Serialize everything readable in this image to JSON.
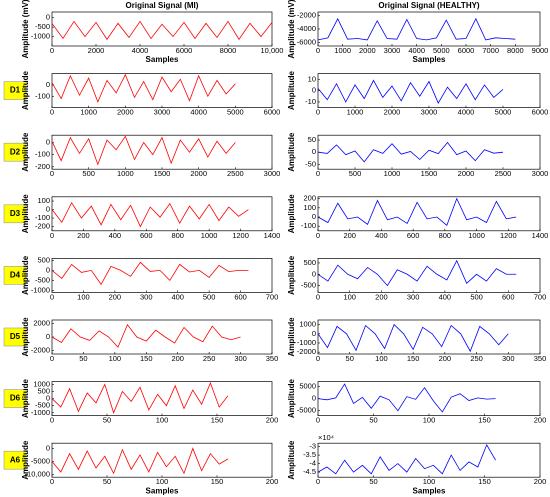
{
  "row_labels": [
    "D1",
    "D2",
    "D3",
    "D4",
    "D5",
    "D6",
    "A6"
  ],
  "chart_data": [
    {
      "type": "line",
      "title": "Original Signal (MI)",
      "ylabel": "Amplitude (mV)",
      "xlabel": "Samples",
      "color": "#ff0000",
      "x": [
        0,
        500,
        1000,
        1500,
        2000,
        2500,
        3000,
        3500,
        4000,
        4500,
        5000,
        5500,
        6000,
        6500,
        7000,
        7500,
        8000,
        8500,
        9000,
        9500,
        10000
      ],
      "values": [
        -300,
        -1100,
        -200,
        -1000,
        -250,
        -1150,
        -300,
        -1050,
        -200,
        -1100,
        -350,
        -1000,
        -250,
        -1100,
        -300,
        -1050,
        -200,
        -1150,
        -300,
        -1000,
        -250
      ],
      "xlim": [
        0,
        10000
      ],
      "xticks": [
        0,
        2000,
        4000,
        6000,
        8000,
        {
          "value": 10000,
          "label": "10,000"
        }
      ],
      "ylim": [
        -1500,
        300
      ],
      "yticks": [
        -1000,
        -500,
        0
      ]
    },
    {
      "type": "line",
      "title": "Original Signal (HEALTHY)",
      "ylabel": "Amplitude (mV)",
      "xlabel": "Samples",
      "color": "#0000ff",
      "x": [
        0,
        400,
        800,
        1200,
        1600,
        2000,
        2400,
        2800,
        3200,
        3600,
        4000,
        4400,
        4800,
        5200,
        5600,
        6000,
        6400,
        6800,
        7200,
        7600,
        8000
      ],
      "values": [
        -5600,
        -5300,
        -2500,
        -5500,
        -5400,
        -5600,
        -2800,
        -5400,
        -5500,
        -2600,
        -5400,
        -5600,
        -5300,
        -2700,
        -5500,
        -5400,
        -2500,
        -5600,
        -5300,
        -5400,
        -5500
      ],
      "xlim": [
        0,
        9000
      ],
      "xticks": [
        0,
        1000,
        2000,
        3000,
        4000,
        5000,
        6000,
        7000,
        8000,
        9000
      ],
      "ylim": [
        -6500,
        -1500
      ],
      "yticks": [
        -6000,
        -4000,
        -2000
      ]
    },
    {
      "type": "line",
      "ylabel": "Amplitude",
      "color": "#ff0000",
      "x": [
        0,
        250,
        500,
        750,
        1000,
        1250,
        1500,
        1750,
        2000,
        2250,
        2500,
        2750,
        3000,
        3250,
        3500,
        3750,
        4000,
        4250,
        4500,
        4750,
        5000
      ],
      "values": [
        20,
        -120,
        80,
        -90,
        60,
        -150,
        40,
        -70,
        90,
        -110,
        30,
        -130,
        70,
        -60,
        50,
        -140,
        80,
        -100,
        40,
        -80,
        10
      ],
      "xlim": [
        0,
        6000
      ],
      "xticks": [
        0,
        1000,
        2000,
        3000,
        4000,
        5000,
        6000
      ],
      "ylim": [
        -200,
        100
      ],
      "yticks": [
        -100,
        0
      ]
    },
    {
      "type": "line",
      "ylabel": "Amplitude",
      "color": "#0000ff",
      "x": [
        0,
        250,
        500,
        750,
        1000,
        1250,
        1500,
        1750,
        2000,
        2250,
        2500,
        2750,
        3000,
        3250,
        3500,
        3750,
        4000,
        4250,
        4500,
        4750,
        5000
      ],
      "values": [
        2,
        -8,
        6,
        -10,
        5,
        -7,
        9,
        -6,
        4,
        -9,
        7,
        -5,
        8,
        -11,
        3,
        -7,
        6,
        -8,
        5,
        -6,
        1
      ],
      "xlim": [
        0,
        6000
      ],
      "xticks": [
        0,
        1000,
        2000,
        3000,
        4000,
        5000,
        6000
      ],
      "ylim": [
        -15,
        15
      ],
      "yticks": [
        -10,
        0,
        10
      ]
    },
    {
      "type": "line",
      "ylabel": "Amplitude",
      "color": "#ff0000",
      "x": [
        0,
        125,
        250,
        375,
        500,
        625,
        750,
        875,
        1000,
        1125,
        1250,
        1375,
        1500,
        1625,
        1750,
        1875,
        2000,
        2125,
        2250,
        2375,
        2500
      ],
      "values": [
        10,
        -150,
        40,
        -90,
        30,
        -180,
        20,
        -60,
        50,
        -140,
        0,
        -100,
        40,
        -170,
        20,
        -80,
        30,
        -120,
        10,
        -90,
        0
      ],
      "xlim": [
        0,
        3000
      ],
      "xticks": [
        0,
        500,
        1000,
        1500,
        2000,
        2500,
        3000
      ],
      "ylim": [
        -220,
        60
      ],
      "yticks": [
        -200,
        -100,
        0
      ]
    },
    {
      "type": "line",
      "ylabel": "Amplitude",
      "color": "#0000ff",
      "x": [
        0,
        125,
        250,
        375,
        500,
        625,
        750,
        875,
        1000,
        1125,
        1250,
        1375,
        1500,
        1625,
        1750,
        1875,
        2000,
        2125,
        2250,
        2375,
        2500
      ],
      "values": [
        0,
        -5,
        30,
        -10,
        5,
        -40,
        10,
        -5,
        35,
        -8,
        3,
        -30,
        8,
        -6,
        40,
        -10,
        5,
        -35,
        10,
        -4,
        0
      ],
      "xlim": [
        0,
        3000
      ],
      "xticks": [
        0,
        500,
        1000,
        1500,
        2000,
        2500,
        3000
      ],
      "ylim": [
        -70,
        70
      ],
      "yticks": [
        -50,
        0,
        50
      ]
    },
    {
      "type": "line",
      "ylabel": "Amplitude",
      "color": "#ff0000",
      "x": [
        0,
        62.5,
        125,
        187.5,
        250,
        312.5,
        375,
        437.5,
        500,
        562.5,
        625,
        687.5,
        750,
        812.5,
        875,
        937.5,
        1000,
        1062.5,
        1125,
        1187.5,
        1250
      ],
      "values": [
        0,
        -150,
        80,
        -100,
        40,
        -180,
        60,
        -120,
        50,
        -200,
        30,
        -90,
        70,
        -160,
        40,
        -110,
        60,
        -130,
        30,
        -80,
        0
      ],
      "xlim": [
        0,
        1400
      ],
      "xticks": [
        0,
        200,
        400,
        600,
        800,
        1000,
        1200,
        1400
      ],
      "ylim": [
        -250,
        150
      ],
      "yticks": [
        -200,
        -100,
        0,
        100
      ]
    },
    {
      "type": "line",
      "ylabel": "Amplitude",
      "color": "#0000ff",
      "x": [
        0,
        62.5,
        125,
        187.5,
        250,
        312.5,
        375,
        437.5,
        500,
        562.5,
        625,
        687.5,
        750,
        812.5,
        875,
        937.5,
        1000,
        1062.5,
        1125,
        1187.5,
        1250
      ],
      "values": [
        0,
        -60,
        150,
        -20,
        0,
        -80,
        180,
        -30,
        0,
        -70,
        160,
        -20,
        0,
        -90,
        200,
        -30,
        0,
        -60,
        170,
        -20,
        0
      ],
      "xlim": [
        0,
        1400
      ],
      "xticks": [
        0,
        200,
        400,
        600,
        800,
        1000,
        1200,
        1400
      ],
      "ylim": [
        -150,
        220
      ],
      "yticks": [
        -100,
        0,
        100,
        200
      ]
    },
    {
      "type": "line",
      "ylabel": "Amplitude",
      "color": "#ff0000",
      "x": [
        0,
        31.25,
        62.5,
        93.75,
        125,
        156.25,
        187.5,
        218.75,
        250,
        281.25,
        312.5,
        343.75,
        375,
        406.25,
        437.5,
        468.75,
        500,
        531.25,
        562.5,
        593.75,
        625
      ],
      "values": [
        0,
        -400,
        300,
        -100,
        0,
        -700,
        200,
        0,
        -300,
        400,
        -50,
        0,
        -500,
        300,
        -80,
        0,
        -350,
        250,
        -60,
        0,
        0
      ],
      "xlim": [
        0,
        700
      ],
      "xticks": [
        0,
        100,
        200,
        300,
        400,
        500,
        600,
        700
      ],
      "ylim": [
        -1100,
        600
      ],
      "yticks": [
        -1000,
        -500,
        0,
        500
      ]
    },
    {
      "type": "line",
      "ylabel": "Amplitude",
      "color": "#0000ff",
      "x": [
        0,
        31.25,
        62.5,
        93.75,
        125,
        156.25,
        187.5,
        218.75,
        250,
        281.25,
        312.5,
        343.75,
        375,
        406.25,
        437.5,
        468.75,
        500,
        531.25,
        562.5,
        593.75,
        625
      ],
      "values": [
        0,
        -300,
        400,
        0,
        -200,
        300,
        0,
        -500,
        200,
        0,
        -300,
        350,
        0,
        -250,
        600,
        -400,
        0,
        -300,
        250,
        0,
        0
      ],
      "xlim": [
        0,
        700
      ],
      "xticks": [
        0,
        100,
        200,
        300,
        400,
        500,
        600,
        700
      ],
      "ylim": [
        -800,
        700
      ],
      "yticks": [
        -500,
        0,
        500
      ]
    },
    {
      "type": "line",
      "ylabel": "Amplitude",
      "color": "#ff0000",
      "x": [
        0,
        15,
        30,
        45,
        60,
        75,
        90,
        105,
        120,
        135,
        150,
        165,
        180,
        195,
        210,
        225,
        240,
        255,
        270,
        285,
        300
      ],
      "values": [
        0,
        -800,
        1200,
        0,
        -500,
        900,
        0,
        -1500,
        1800,
        0,
        -600,
        1000,
        0,
        -900,
        1400,
        0,
        -700,
        1600,
        0,
        -400,
        0
      ],
      "xlim": [
        0,
        350
      ],
      "xticks": [
        0,
        50,
        100,
        150,
        200,
        250,
        300,
        350
      ],
      "ylim": [
        -2500,
        2500
      ],
      "yticks": [
        -2000,
        0,
        2000
      ]
    },
    {
      "type": "line",
      "ylabel": "Amplitude",
      "color": "#0000ff",
      "x": [
        0,
        15,
        30,
        45,
        60,
        75,
        90,
        105,
        120,
        135,
        150,
        165,
        180,
        195,
        210,
        225,
        240,
        255,
        270,
        285,
        300
      ],
      "values": [
        0,
        -1500,
        800,
        0,
        -1800,
        900,
        0,
        -1600,
        1000,
        0,
        -1700,
        700,
        0,
        -1400,
        900,
        0,
        -1900,
        800,
        0,
        -1200,
        0
      ],
      "xlim": [
        0,
        350
      ],
      "xticks": [
        0,
        50,
        100,
        150,
        200,
        250,
        300,
        350
      ],
      "ylim": [
        -2200,
        1500
      ],
      "yticks": [
        -2000,
        -1000,
        0,
        1000
      ]
    },
    {
      "type": "line",
      "ylabel": "Amplitude",
      "color": "#ff0000",
      "x": [
        0,
        8,
        16,
        24,
        32,
        40,
        48,
        56,
        64,
        72,
        80,
        88,
        96,
        104,
        112,
        120,
        128,
        136,
        144,
        152,
        160
      ],
      "values": [
        0,
        -600,
        700,
        -900,
        400,
        -300,
        1000,
        -1000,
        500,
        -200,
        800,
        -800,
        300,
        -500,
        900,
        -700,
        600,
        -400,
        1100,
        -600,
        200
      ],
      "xlim": [
        0,
        200
      ],
      "xticks": [
        0,
        50,
        100,
        150,
        200
      ],
      "ylim": [
        -1200,
        1200
      ],
      "yticks": [
        -1000,
        -500,
        0,
        500,
        1000
      ]
    },
    {
      "type": "line",
      "ylabel": "Amplitude",
      "color": "#0000ff",
      "x": [
        0,
        8,
        16,
        24,
        32,
        40,
        48,
        56,
        64,
        72,
        80,
        88,
        96,
        104,
        112,
        120,
        128,
        136,
        144,
        152,
        160
      ],
      "values": [
        0,
        -500,
        300,
        6000,
        -2000,
        500,
        -4000,
        1000,
        -500,
        -5000,
        800,
        -300,
        4500,
        -1000,
        -5500,
        600,
        2000,
        -800,
        300,
        -200,
        0
      ],
      "xlim": [
        0,
        200
      ],
      "xticks": [
        0,
        50,
        100,
        150,
        200
      ],
      "ylim": [
        -7000,
        7000
      ],
      "yticks": [
        -5000,
        0,
        5000
      ]
    },
    {
      "type": "line",
      "ylabel": "Amplitude",
      "xlabel": "Samples",
      "color": "#ff0000",
      "x": [
        0,
        8,
        16,
        24,
        32,
        40,
        48,
        56,
        64,
        72,
        80,
        88,
        96,
        104,
        112,
        120,
        128,
        136,
        144,
        152,
        160
      ],
      "values": [
        -5000,
        -9000,
        -2000,
        -8000,
        -1000,
        -7500,
        -3000,
        -9500,
        -500,
        -8000,
        -2500,
        -9000,
        -1500,
        -7000,
        -3000,
        -9500,
        0,
        -8500,
        -2000,
        -6000,
        -4000
      ],
      "xlim": [
        0,
        200
      ],
      "xticks": [
        0,
        50,
        100,
        150,
        200
      ],
      "ylim": [
        -11000,
        2000
      ],
      "yticks": [
        {
          "value": -10000,
          "label": "-10,000"
        },
        -5000,
        0
      ]
    },
    {
      "type": "line",
      "ylabel": "Amplitude",
      "xlabel": "Samples",
      "y_multiplier": "×10⁴",
      "color": "#0000ff",
      "x": [
        0,
        8,
        16,
        24,
        32,
        40,
        48,
        56,
        64,
        72,
        80,
        88,
        96,
        104,
        112,
        120,
        128,
        136,
        144,
        152,
        160
      ],
      "values": [
        -4.5,
        -4.2,
        -4.6,
        -3.8,
        -4.5,
        -4.1,
        -4.6,
        -3.6,
        -4.4,
        -4.0,
        -4.5,
        -3.7,
        -4.3,
        -4.1,
        -4.6,
        -3.5,
        -4.4,
        -3.9,
        -4.2,
        -2.9,
        -3.8
      ],
      "xlim": [
        0,
        200
      ],
      "xticks": [
        0,
        50,
        100,
        150,
        200
      ],
      "ylim": [
        -4.8,
        -2.8
      ],
      "yticks": [
        -4.5,
        -4,
        -3.5,
        -3
      ]
    }
  ]
}
